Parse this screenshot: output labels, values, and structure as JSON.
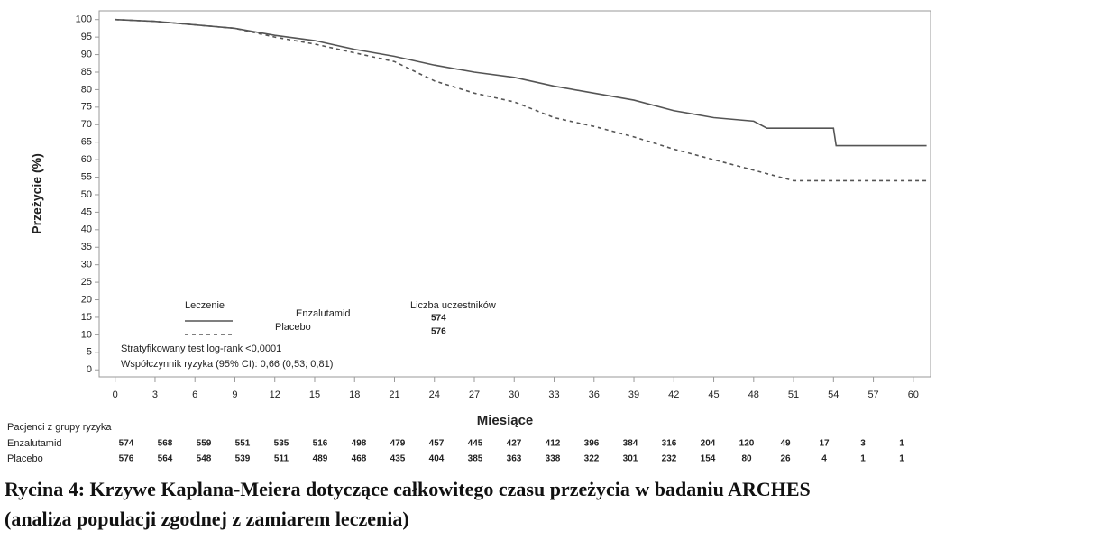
{
  "chart_data": {
    "type": "line",
    "ylabel": "Przeżycie (%)",
    "xlabel": "Miesiące",
    "xlim": [
      -1.2,
      61.3
    ],
    "ylim": [
      -2,
      102.5
    ],
    "xticks": [
      0,
      3,
      6,
      9,
      12,
      15,
      18,
      21,
      24,
      27,
      30,
      33,
      36,
      39,
      42,
      45,
      48,
      51,
      54,
      57,
      60
    ],
    "yticks": [
      0,
      5,
      10,
      15,
      20,
      25,
      30,
      35,
      40,
      45,
      50,
      55,
      60,
      65,
      70,
      75,
      80,
      85,
      90,
      95,
      100
    ],
    "legend_title": "Leczenie",
    "count_title": "Liczba uczestników",
    "series": [
      {
        "name": "Enzalutamid",
        "color": "#555555",
        "dash": "none",
        "count": 574,
        "x": [
          0,
          3,
          6,
          9,
          12,
          15,
          18,
          21,
          24,
          27,
          30,
          33,
          36,
          39,
          42,
          45,
          48,
          49,
          54,
          54.2,
          61
        ],
        "values": [
          100,
          99.5,
          98.5,
          97.5,
          95.5,
          94,
          91.5,
          89.5,
          87,
          85,
          83.5,
          81,
          79,
          77,
          74,
          72,
          71,
          69,
          69,
          64,
          64
        ]
      },
      {
        "name": "Placebo",
        "color": "#555555",
        "dash": "4 4",
        "count": 576,
        "x": [
          0,
          3,
          6,
          9,
          12,
          15,
          18,
          21,
          24,
          27,
          30,
          33,
          36,
          39,
          42,
          45,
          48,
          50,
          51,
          61
        ],
        "values": [
          100,
          99.5,
          98.5,
          97.5,
          95,
          93,
          90.5,
          88,
          82.5,
          79,
          76.5,
          72,
          69.5,
          66.5,
          63,
          60,
          57,
          55,
          54,
          54
        ]
      }
    ],
    "annotations": [
      "Stratyfikowany test log-rank <0,0001",
      "Współczynnik ryzyka (95% CI): 0,66 (0,53; 0,81)"
    ],
    "risk_table": {
      "title": "Pacjenci z grupy ryzyka",
      "rows": [
        {
          "name": "Enzalutamid",
          "values": [
            574,
            568,
            559,
            551,
            535,
            516,
            498,
            479,
            457,
            445,
            427,
            412,
            396,
            384,
            316,
            204,
            120,
            49,
            17,
            3,
            1
          ]
        },
        {
          "name": "Placebo",
          "values": [
            576,
            564,
            548,
            539,
            511,
            489,
            468,
            435,
            404,
            385,
            363,
            338,
            322,
            301,
            232,
            154,
            80,
            26,
            4,
            1,
            1
          ]
        }
      ]
    }
  },
  "caption": [
    "Rycina 4: Krzywe Kaplana-Meiera dotyczące całkowitego czasu przeżycia w badaniu ARCHES",
    "(analiza populacji zgodnej z zamiarem leczenia)"
  ]
}
